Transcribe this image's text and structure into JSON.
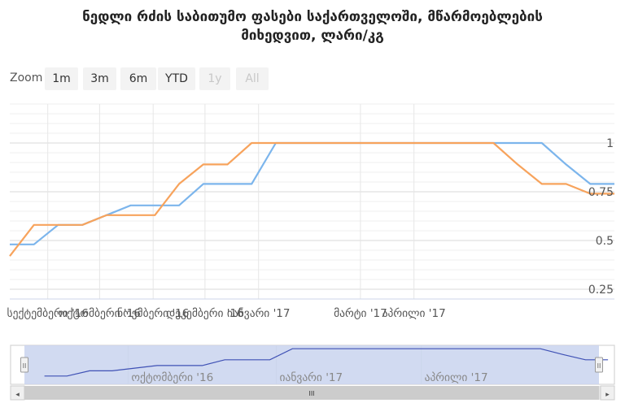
{
  "chart_data": {
    "type": "line",
    "title": "ნედლი რძის საბითუმო ფასები საქართველოში, მწარმოებლების მიხედვით, ლარი/კგ",
    "title_lines": [
      "ნედლი რძის საბითუმო ფასები საქართველოში, მწარმოებლების",
      "მიხედვით, ლარი/კგ"
    ],
    "xlabel": "",
    "ylabel": "",
    "x_tick_labels": [
      "სექტემბერი '16",
      "ოქტომბერი '16",
      "ნოემბერი '16",
      "დეკემბერი '16",
      "იანვარი '17",
      "მარტი '17",
      "აპრილი '17"
    ],
    "y_tick_labels": [
      "0.25",
      "0.5",
      "0.75",
      "1"
    ],
    "ylim": [
      0.2,
      1.2
    ],
    "grid": true,
    "colors": [
      "#7cb5ec",
      "#f7a35c"
    ],
    "series": [
      {
        "values": [
          [
            "2016-08-10",
            0.48
          ],
          [
            "2016-08-24",
            0.48
          ],
          [
            "2016-09-07",
            0.58
          ],
          [
            "2016-09-21",
            0.58
          ],
          [
            "2016-10-05",
            0.63
          ],
          [
            "2016-10-19",
            0.68
          ],
          [
            "2016-11-02",
            0.68
          ],
          [
            "2016-11-16",
            0.68
          ],
          [
            "2016-11-30",
            0.79
          ],
          [
            "2016-12-14",
            0.79
          ],
          [
            "2016-12-28",
            0.79
          ],
          [
            "2017-01-11",
            1.0
          ],
          [
            "2017-01-25",
            1.0
          ],
          [
            "2017-02-08",
            1.0
          ],
          [
            "2017-02-22",
            1.0
          ],
          [
            "2017-03-08",
            1.0
          ],
          [
            "2017-03-22",
            1.0
          ],
          [
            "2017-04-05",
            1.0
          ],
          [
            "2017-04-19",
            1.0
          ],
          [
            "2017-05-03",
            1.0
          ],
          [
            "2017-05-17",
            1.0
          ],
          [
            "2017-05-31",
            1.0
          ],
          [
            "2017-06-14",
            1.0
          ],
          [
            "2017-06-28",
            0.89
          ],
          [
            "2017-07-12",
            0.79
          ],
          [
            "2017-07-26",
            0.79
          ]
        ]
      },
      {
        "values": [
          [
            "2016-08-10",
            0.42
          ],
          [
            "2016-08-24",
            0.58
          ],
          [
            "2016-09-07",
            0.58
          ],
          [
            "2016-09-21",
            0.58
          ],
          [
            "2016-10-05",
            0.63
          ],
          [
            "2016-10-19",
            0.63
          ],
          [
            "2016-11-02",
            0.63
          ],
          [
            "2016-11-16",
            0.79
          ],
          [
            "2016-11-30",
            0.89
          ],
          [
            "2016-12-14",
            0.89
          ],
          [
            "2016-12-28",
            1.0
          ],
          [
            "2017-01-11",
            1.0
          ],
          [
            "2017-01-25",
            1.0
          ],
          [
            "2017-02-08",
            1.0
          ],
          [
            "2017-02-22",
            1.0
          ],
          [
            "2017-03-08",
            1.0
          ],
          [
            "2017-03-22",
            1.0
          ],
          [
            "2017-04-05",
            1.0
          ],
          [
            "2017-04-19",
            1.0
          ],
          [
            "2017-05-03",
            1.0
          ],
          [
            "2017-05-17",
            1.0
          ],
          [
            "2017-05-31",
            0.89
          ],
          [
            "2017-06-14",
            0.79
          ],
          [
            "2017-06-28",
            0.79
          ],
          [
            "2017-07-12",
            0.74
          ],
          [
            "2017-07-26",
            0.74
          ]
        ]
      }
    ]
  },
  "range_selector": {
    "label": "Zoom",
    "buttons": [
      {
        "label": "1m",
        "enabled": true
      },
      {
        "label": "3m",
        "enabled": true
      },
      {
        "label": "6m",
        "enabled": true
      },
      {
        "label": "YTD",
        "enabled": true
      },
      {
        "label": "1y",
        "enabled": false
      },
      {
        "label": "All",
        "enabled": false
      }
    ]
  },
  "navigator": {
    "tick_labels": [
      "ოქტომბერი '16",
      "იანვარი '17",
      "აპრილი '17"
    ],
    "handle_glyph": "II",
    "scrollbar_grip": "III",
    "left_arrow": "◂",
    "right_arrow": "▸",
    "colors": {
      "mask": "#c9d3ee",
      "line": "#3f51b5",
      "track": "#e6e6e6",
      "thumb": "#cccccc"
    }
  }
}
